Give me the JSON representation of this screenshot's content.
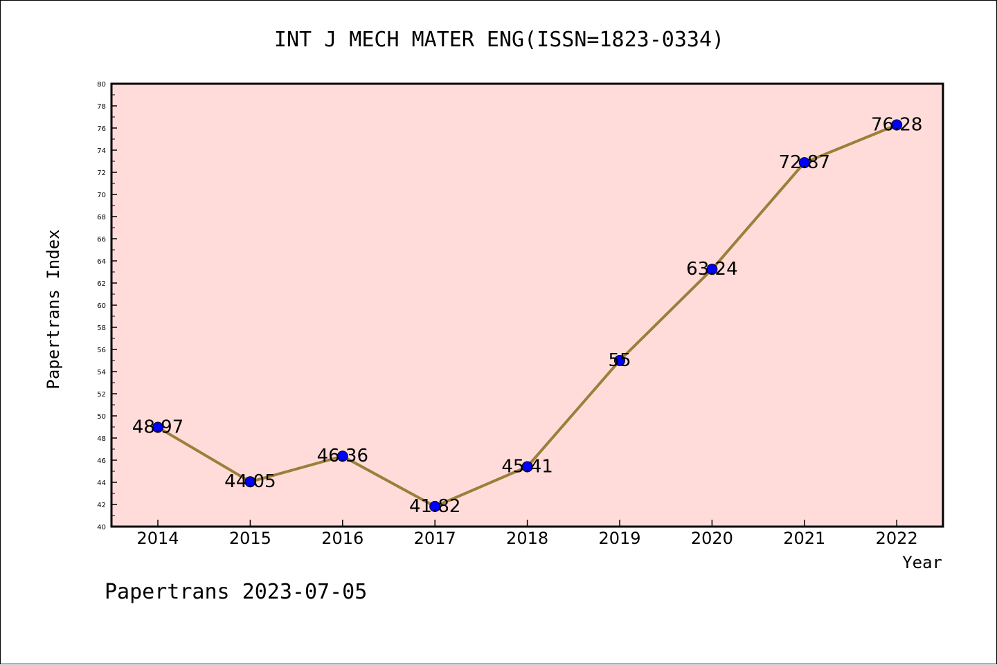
{
  "chart_data": {
    "type": "line",
    "title": "INT J MECH MATER ENG(ISSN=1823-0334)",
    "xlabel": "Year",
    "ylabel": "Papertrans Index",
    "categories": [
      "2014",
      "2015",
      "2016",
      "2017",
      "2018",
      "2019",
      "2020",
      "2021",
      "2022"
    ],
    "values": [
      48.97,
      44.05,
      46.36,
      41.82,
      45.41,
      55,
      63.24,
      72.87,
      76.28
    ],
    "data_labels": [
      "48.97",
      "44.05",
      "46.36",
      "41.82",
      "45.41",
      "55",
      "63.24",
      "72.87",
      "76.28"
    ],
    "ylim": [
      40,
      80
    ],
    "yticks": [
      "40",
      "42",
      "44",
      "46",
      "48",
      "50",
      "52",
      "54",
      "56",
      "58",
      "60",
      "62",
      "64",
      "66",
      "68",
      "70",
      "72",
      "74",
      "76",
      "78",
      "80"
    ],
    "grid": false,
    "colors": {
      "plot_background": "#ffdcda",
      "line": "#9b7f3a",
      "marker": "#0000ff",
      "axis": "#000000"
    }
  },
  "footer": "Papertrans 2023-07-05"
}
